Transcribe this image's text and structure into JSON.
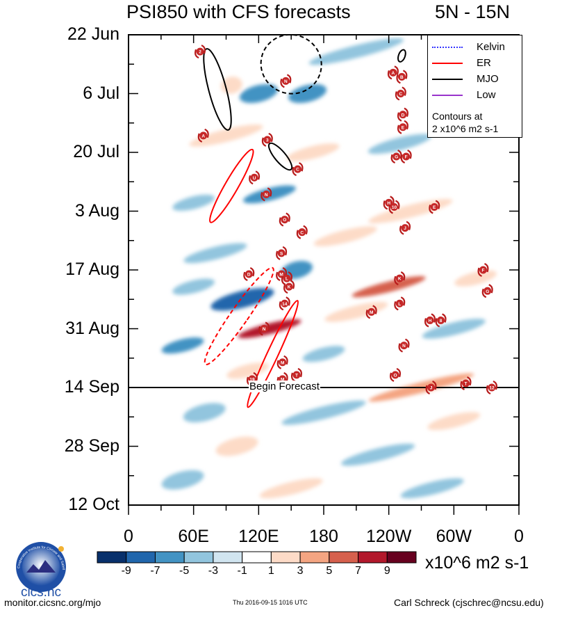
{
  "header": {
    "title": "PSI850 with CFS forecasts",
    "region": "5N - 15N"
  },
  "legend": {
    "items": [
      {
        "label": "Kelvin",
        "color": "#3333ff",
        "style": "dotted"
      },
      {
        "label": "ER",
        "color": "#ff0000",
        "style": "solid"
      },
      {
        "label": "MJO",
        "color": "#000000",
        "style": "solid"
      },
      {
        "label": "Low",
        "color": "#9933cc",
        "style": "solid"
      }
    ],
    "note_line1": "Contours at",
    "note_line2": "2 x10^6 m2 s-1"
  },
  "chart_data": {
    "type": "heatmap",
    "title": "PSI850 with CFS forecasts",
    "subtitle": "5N - 15N",
    "y_axis": {
      "type": "date",
      "labels": [
        "22 Jun",
        "6 Jul",
        "20 Jul",
        "3 Aug",
        "17 Aug",
        "31 Aug",
        "14 Sep",
        "28 Sep",
        "12 Oct"
      ],
      "label_days": [
        0,
        14,
        28,
        42,
        56,
        70,
        84,
        98,
        112
      ],
      "range_days": [
        0,
        112
      ],
      "inverted": true
    },
    "x_axis": {
      "labels": [
        "0",
        "60E",
        "120E",
        "180",
        "120W",
        "60W",
        "0"
      ],
      "label_lon": [
        0,
        60,
        120,
        180,
        240,
        300,
        360
      ],
      "range_lon": [
        0,
        360
      ]
    },
    "forecast_line": {
      "label": "Begin Forecast",
      "day": 84
    },
    "colorbar": {
      "levels": [
        "-9",
        "-7",
        "-5",
        "-3",
        "-1",
        "1",
        "3",
        "5",
        "7",
        "9"
      ],
      "colors": [
        "#08306b",
        "#2166ac",
        "#4393c3",
        "#92c5de",
        "#d1e5f0",
        "#ffffff",
        "#fddbc7",
        "#f4a582",
        "#d6604d",
        "#b2182b",
        "#67001f"
      ],
      "units": "x10^6 m2 s-1"
    },
    "anomalies": [
      {
        "lon": 95,
        "day": 12,
        "w": 20,
        "h": 4,
        "v": 3
      },
      {
        "lon": 120,
        "day": 14,
        "w": 36,
        "h": 4,
        "v": -5
      },
      {
        "lon": 165,
        "day": 14,
        "w": 36,
        "h": 4,
        "v": -5
      },
      {
        "lon": 210,
        "day": 4,
        "w": 90,
        "h": 3,
        "v": -3
      },
      {
        "lon": 90,
        "day": 24,
        "w": 70,
        "h": 3,
        "v": 3
      },
      {
        "lon": 170,
        "day": 28,
        "w": 50,
        "h": 3,
        "v": 3
      },
      {
        "lon": 250,
        "day": 26,
        "w": 60,
        "h": 3,
        "v": -3
      },
      {
        "lon": 130,
        "day": 38,
        "w": 50,
        "h": 3,
        "v": -5
      },
      {
        "lon": 60,
        "day": 40,
        "w": 40,
        "h": 3,
        "v": -3
      },
      {
        "lon": 260,
        "day": 42,
        "w": 80,
        "h": 3,
        "v": 3
      },
      {
        "lon": 200,
        "day": 48,
        "w": 60,
        "h": 3,
        "v": 3
      },
      {
        "lon": 80,
        "day": 52,
        "w": 60,
        "h": 3,
        "v": -3
      },
      {
        "lon": 155,
        "day": 56,
        "w": 30,
        "h": 4,
        "v": -5
      },
      {
        "lon": 240,
        "day": 60,
        "w": 70,
        "h": 2.5,
        "v": 7
      },
      {
        "lon": 320,
        "day": 58,
        "w": 40,
        "h": 3,
        "v": 3
      },
      {
        "lon": 105,
        "day": 63,
        "w": 60,
        "h": 4,
        "v": -7
      },
      {
        "lon": 60,
        "day": 60,
        "w": 40,
        "h": 3,
        "v": -3
      },
      {
        "lon": 130,
        "day": 70,
        "w": 60,
        "h": 2.5,
        "v": 9
      },
      {
        "lon": 210,
        "day": 66,
        "w": 60,
        "h": 3,
        "v": 3
      },
      {
        "lon": 300,
        "day": 70,
        "w": 60,
        "h": 3,
        "v": -3
      },
      {
        "lon": 50,
        "day": 74,
        "w": 40,
        "h": 3,
        "v": -5
      },
      {
        "lon": 180,
        "day": 76,
        "w": 40,
        "h": 3,
        "v": -3
      },
      {
        "lon": 270,
        "day": 84,
        "w": 100,
        "h": 2.5,
        "v": 5
      },
      {
        "lon": 110,
        "day": 80,
        "w": 40,
        "h": 3,
        "v": 3
      },
      {
        "lon": 70,
        "day": 90,
        "w": 40,
        "h": 4,
        "v": -3
      },
      {
        "lon": 180,
        "day": 90,
        "w": 80,
        "h": 3,
        "v": -3
      },
      {
        "lon": 300,
        "day": 92,
        "w": 50,
        "h": 3,
        "v": 3
      },
      {
        "lon": 100,
        "day": 98,
        "w": 40,
        "h": 4,
        "v": 3
      },
      {
        "lon": 230,
        "day": 100,
        "w": 70,
        "h": 3,
        "v": -3
      },
      {
        "lon": 50,
        "day": 106,
        "w": 40,
        "h": 4,
        "v": -3
      },
      {
        "lon": 150,
        "day": 108,
        "w": 60,
        "h": 3,
        "v": 3
      },
      {
        "lon": 280,
        "day": 108,
        "w": 60,
        "h": 3,
        "v": -3
      }
    ],
    "contours": [
      {
        "type": "MJO",
        "color": "#000000",
        "dashed": false,
        "lon": 82,
        "day": 13,
        "rx": 8,
        "ry": 10,
        "angle": -15
      },
      {
        "type": "MJO",
        "color": "#000000",
        "dashed": false,
        "lon": 140,
        "day": 29,
        "rx": 5,
        "ry": 4,
        "angle": -40
      },
      {
        "type": "MJO",
        "color": "#000000",
        "dashed": false,
        "lon": 252,
        "day": 5,
        "rx": 3,
        "ry": 1.5,
        "angle": 20
      },
      {
        "type": "MJO",
        "color": "#000000",
        "dashed": true,
        "lon": 150,
        "day": 7,
        "rx": 28,
        "ry": 7,
        "angle": 20
      },
      {
        "type": "ER",
        "color": "#ff0000",
        "dashed": false,
        "lon": 95,
        "day": 36,
        "rx": 6,
        "ry": 10,
        "angle": 30
      },
      {
        "type": "ER",
        "color": "#ff0000",
        "dashed": false,
        "lon": 133,
        "day": 76,
        "rx": 5,
        "ry": 14,
        "angle": 25
      },
      {
        "type": "ER",
        "color": "#ff0000",
        "dashed": true,
        "lon": 102,
        "day": 67,
        "rx": 8,
        "ry": 14,
        "angle": 35
      }
    ],
    "storms": [
      {
        "label": "2",
        "lon": 66,
        "day": 4
      },
      {
        "label": "A",
        "lon": 69,
        "day": 24
      },
      {
        "label": "N",
        "lon": 145,
        "day": 11
      },
      {
        "label": "3",
        "lon": 128,
        "day": 25
      },
      {
        "label": "C",
        "lon": 156,
        "day": 32
      },
      {
        "label": "U",
        "lon": 116,
        "day": 34
      },
      {
        "label": "N",
        "lon": 127,
        "day": 38
      },
      {
        "label": "O",
        "lon": 144,
        "day": 44
      },
      {
        "label": "C",
        "lon": 160,
        "day": 47
      },
      {
        "label": "S",
        "lon": 141,
        "day": 52
      },
      {
        "label": "D",
        "lon": 111,
        "day": 57
      },
      {
        "label": "M",
        "lon": 141,
        "day": 57
      },
      {
        "label": "L",
        "lon": 146,
        "day": 58
      },
      {
        "label": "K",
        "lon": 148,
        "day": 60
      },
      {
        "label": "14",
        "lon": 144,
        "day": 64
      },
      {
        "label": "N",
        "lon": 125,
        "day": 70
      },
      {
        "label": "19",
        "lon": 114,
        "day": 82
      },
      {
        "label": "M",
        "lon": 142,
        "day": 78
      },
      {
        "label": "M",
        "lon": 142,
        "day": 82
      },
      {
        "label": "T",
        "lon": 155,
        "day": 81
      },
      {
        "label": "A",
        "lon": 244,
        "day": 9
      },
      {
        "label": "B",
        "lon": 252,
        "day": 10
      },
      {
        "label": "C",
        "lon": 251,
        "day": 14
      },
      {
        "label": "D",
        "lon": 253,
        "day": 19
      },
      {
        "label": "E",
        "lon": 253,
        "day": 22
      },
      {
        "label": "G",
        "lon": 247,
        "day": 29
      },
      {
        "label": "F",
        "lon": 256,
        "day": 29
      },
      {
        "label": "H",
        "lon": 240,
        "day": 40
      },
      {
        "label": "10",
        "lon": 245,
        "day": 41
      },
      {
        "label": "E",
        "lon": 282,
        "day": 41
      },
      {
        "label": "J",
        "lon": 255,
        "day": 46
      },
      {
        "label": "K",
        "lon": 250,
        "day": 58
      },
      {
        "label": "L",
        "lon": 250,
        "day": 64
      },
      {
        "label": "M",
        "lon": 224,
        "day": 66
      },
      {
        "label": "H",
        "lon": 278,
        "day": 68
      },
      {
        "label": "8",
        "lon": 288,
        "day": 68
      },
      {
        "label": "F",
        "lon": 327,
        "day": 56
      },
      {
        "label": "G",
        "lon": 331,
        "day": 61
      },
      {
        "label": "N",
        "lon": 254,
        "day": 74
      },
      {
        "label": "O",
        "lon": 246,
        "day": 81
      },
      {
        "label": "J",
        "lon": 279,
        "day": 84
      },
      {
        "label": "T",
        "lon": 311,
        "day": 83
      },
      {
        "label": "12",
        "lon": 335,
        "day": 84
      }
    ]
  },
  "logo": {
    "text": "cics.nc",
    "ring_text": "Cooperative Institute for Climate and Satellites"
  },
  "footer": {
    "left": "monitor.cicsnc.org/mjo",
    "center": "Thu 2016-09-15 1016 UTC",
    "right": "Carl Schreck (cjschrec@ncsu.edu)"
  }
}
